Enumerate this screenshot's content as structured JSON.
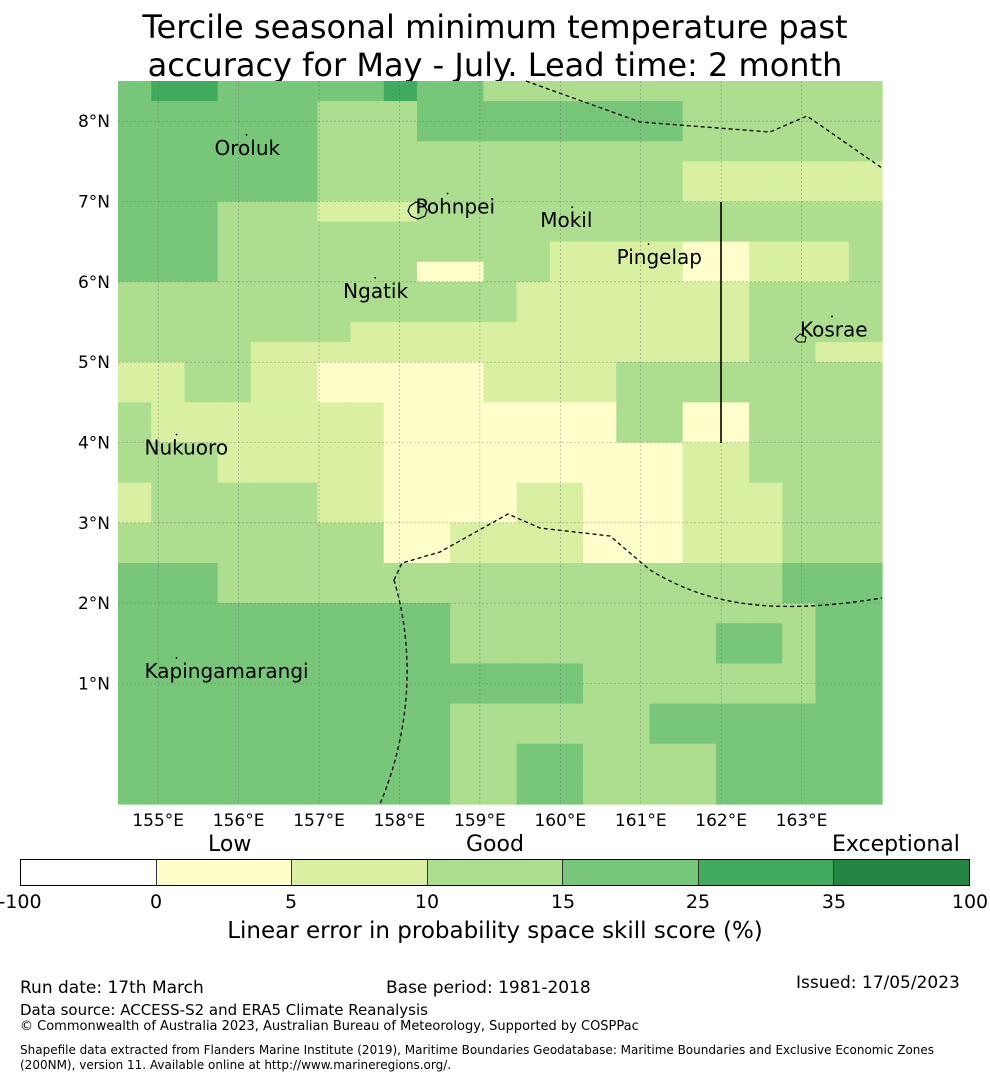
{
  "title": {
    "line1": "Tercile seasonal minimum temperature past",
    "line2": "accuracy for May - July. Lead time: 2 month"
  },
  "map": {
    "lon_range": [
      154.5,
      164.0
    ],
    "lat_range": [
      -0.5,
      8.5
    ],
    "lon_ticks": [
      {
        "value": 155,
        "label": "155°E"
      },
      {
        "value": 156,
        "label": "156°E"
      },
      {
        "value": 157,
        "label": "157°E"
      },
      {
        "value": 158,
        "label": "158°E"
      },
      {
        "value": 159,
        "label": "159°E"
      },
      {
        "value": 160,
        "label": "160°E"
      },
      {
        "value": 161,
        "label": "161°E"
      },
      {
        "value": 162,
        "label": "162°E"
      },
      {
        "value": 163,
        "label": "163°E"
      }
    ],
    "lat_ticks": [
      {
        "value": 1,
        "label": "1°N"
      },
      {
        "value": 2,
        "label": "2°N"
      },
      {
        "value": 3,
        "label": "3°N"
      },
      {
        "value": 4,
        "label": "4°N"
      },
      {
        "value": 5,
        "label": "5°N"
      },
      {
        "value": 6,
        "label": "6°N"
      },
      {
        "value": 7,
        "label": "7°N"
      },
      {
        "value": 8,
        "label": "8°N"
      }
    ],
    "grid_rows": [
      [
        4,
        5,
        5,
        4,
        4,
        4,
        4,
        4,
        5,
        4,
        4,
        3,
        3,
        3,
        3,
        3,
        3,
        3,
        3,
        3,
        3,
        3,
        3
      ],
      [
        4,
        4,
        4,
        4,
        4,
        4,
        3,
        3,
        3,
        4,
        4,
        4,
        4,
        4,
        4,
        4,
        4,
        3,
        3,
        3,
        3,
        3,
        3
      ],
      [
        4,
        4,
        4,
        4,
        4,
        4,
        3,
        3,
        3,
        4,
        4,
        4,
        4,
        4,
        4,
        4,
        4,
        3,
        3,
        3,
        3,
        3,
        3
      ],
      [
        4,
        4,
        4,
        4,
        4,
        4,
        3,
        3,
        3,
        3,
        3,
        3,
        3,
        3,
        3,
        3,
        3,
        3,
        3,
        3,
        3,
        3,
        3
      ],
      [
        4,
        4,
        4,
        4,
        4,
        4,
        3,
        3,
        3,
        3,
        3,
        3,
        3,
        3,
        3,
        3,
        3,
        2,
        2,
        2,
        2,
        2,
        2
      ],
      [
        4,
        4,
        4,
        4,
        4,
        4,
        3,
        3,
        3,
        3,
        3,
        3,
        3,
        3,
        3,
        3,
        3,
        2,
        2,
        2,
        2,
        2,
        2
      ],
      [
        4,
        4,
        4,
        3,
        3,
        3,
        2,
        2,
        2,
        3,
        3,
        3,
        3,
        3,
        3,
        3,
        3,
        3,
        3,
        3,
        3,
        3,
        3
      ],
      [
        4,
        4,
        4,
        3,
        3,
        3,
        3,
        3,
        3,
        3,
        3,
        3,
        3,
        3,
        3,
        3,
        3,
        3,
        3,
        3,
        3,
        3,
        3
      ],
      [
        4,
        4,
        4,
        3,
        3,
        3,
        3,
        3,
        3,
        3,
        3,
        3,
        3,
        2,
        2,
        2,
        2,
        1,
        1,
        2,
        2,
        2,
        3
      ],
      [
        4,
        4,
        4,
        3,
        3,
        3,
        3,
        3,
        3,
        1,
        1,
        3,
        3,
        2,
        2,
        2,
        2,
        1,
        1,
        2,
        2,
        2,
        3
      ],
      [
        3,
        3,
        3,
        3,
        3,
        3,
        3,
        3,
        3,
        3,
        3,
        3,
        2,
        2,
        2,
        2,
        2,
        2,
        2,
        3,
        3,
        3,
        3
      ],
      [
        3,
        3,
        3,
        3,
        3,
        3,
        3,
        3,
        3,
        3,
        3,
        3,
        2,
        2,
        2,
        2,
        2,
        2,
        2,
        3,
        3,
        3,
        3
      ],
      [
        3,
        3,
        3,
        3,
        3,
        3,
        3,
        2,
        2,
        2,
        2,
        2,
        2,
        2,
        2,
        2,
        2,
        2,
        2,
        3,
        3,
        3,
        3
      ],
      [
        3,
        3,
        3,
        3,
        2,
        2,
        2,
        2,
        2,
        2,
        2,
        2,
        2,
        2,
        2,
        2,
        2,
        2,
        2,
        3,
        3,
        2,
        2
      ],
      [
        2,
        2,
        3,
        3,
        2,
        2,
        1,
        1,
        1,
        1,
        1,
        2,
        2,
        2,
        2,
        3,
        3,
        3,
        3,
        3,
        3,
        3,
        3
      ],
      [
        2,
        2,
        3,
        3,
        2,
        2,
        1,
        1,
        1,
        1,
        1,
        2,
        2,
        2,
        2,
        3,
        3,
        3,
        3,
        3,
        3,
        3,
        3
      ],
      [
        3,
        2,
        2,
        2,
        2,
        2,
        2,
        2,
        1,
        1,
        1,
        1,
        1,
        1,
        1,
        3,
        3,
        1,
        1,
        3,
        3,
        3,
        3
      ],
      [
        3,
        2,
        2,
        2,
        2,
        2,
        2,
        2,
        1,
        1,
        1,
        1,
        1,
        1,
        1,
        3,
        3,
        1,
        1,
        3,
        3,
        3,
        3
      ],
      [
        3,
        3,
        3,
        2,
        2,
        2,
        2,
        2,
        1,
        1,
        1,
        1,
        1,
        1,
        1,
        1,
        1,
        2,
        2,
        3,
        3,
        3,
        3
      ],
      [
        3,
        3,
        3,
        2,
        2,
        2,
        2,
        2,
        1,
        1,
        1,
        1,
        1,
        1,
        1,
        1,
        1,
        2,
        2,
        3,
        3,
        3,
        3
      ],
      [
        2,
        3,
        3,
        3,
        3,
        3,
        2,
        2,
        1,
        1,
        1,
        1,
        2,
        2,
        1,
        1,
        1,
        2,
        2,
        2,
        3,
        3,
        3
      ],
      [
        2,
        3,
        3,
        3,
        3,
        3,
        2,
        2,
        1,
        1,
        1,
        1,
        2,
        2,
        1,
        1,
        1,
        2,
        2,
        2,
        3,
        3,
        3
      ],
      [
        3,
        3,
        3,
        3,
        3,
        3,
        3,
        3,
        1,
        1,
        2,
        2,
        2,
        2,
        1,
        1,
        1,
        2,
        2,
        2,
        3,
        3,
        3
      ],
      [
        3,
        3,
        3,
        3,
        3,
        3,
        3,
        3,
        1,
        1,
        2,
        2,
        2,
        2,
        1,
        1,
        1,
        2,
        2,
        2,
        3,
        3,
        3
      ],
      [
        4,
        4,
        4,
        3,
        3,
        3,
        3,
        3,
        3,
        3,
        3,
        3,
        3,
        3,
        3,
        3,
        3,
        3,
        3,
        3,
        4,
        4,
        4
      ],
      [
        4,
        4,
        4,
        3,
        3,
        3,
        3,
        3,
        3,
        3,
        3,
        3,
        3,
        3,
        3,
        3,
        3,
        3,
        3,
        3,
        4,
        4,
        4
      ],
      [
        4,
        4,
        4,
        4,
        4,
        4,
        4,
        4,
        4,
        4,
        3,
        3,
        3,
        3,
        3,
        3,
        3,
        3,
        3,
        3,
        3,
        4,
        4
      ],
      [
        4,
        4,
        4,
        4,
        4,
        4,
        4,
        4,
        4,
        4,
        3,
        3,
        3,
        3,
        3,
        3,
        3,
        3,
        4,
        4,
        3,
        4,
        4
      ],
      [
        4,
        4,
        4,
        4,
        4,
        4,
        4,
        4,
        4,
        4,
        3,
        3,
        3,
        3,
        3,
        3,
        3,
        3,
        4,
        4,
        3,
        4,
        4
      ],
      [
        4,
        4,
        4,
        4,
        4,
        4,
        4,
        4,
        4,
        4,
        4,
        4,
        4,
        4,
        3,
        3,
        3,
        3,
        3,
        3,
        3,
        4,
        4
      ],
      [
        4,
        4,
        4,
        4,
        4,
        4,
        4,
        4,
        4,
        4,
        4,
        4,
        4,
        4,
        3,
        3,
        3,
        3,
        3,
        3,
        3,
        4,
        4
      ],
      [
        4,
        4,
        4,
        4,
        4,
        4,
        4,
        4,
        4,
        4,
        3,
        3,
        3,
        3,
        3,
        3,
        4,
        4,
        4,
        4,
        4,
        4,
        4
      ],
      [
        4,
        4,
        4,
        4,
        4,
        4,
        4,
        4,
        4,
        4,
        3,
        3,
        3,
        3,
        3,
        3,
        4,
        4,
        4,
        4,
        4,
        4,
        4
      ],
      [
        4,
        4,
        4,
        4,
        4,
        4,
        4,
        4,
        4,
        4,
        3,
        3,
        4,
        4,
        3,
        3,
        3,
        3,
        4,
        4,
        4,
        4,
        4
      ],
      [
        4,
        4,
        4,
        4,
        4,
        4,
        4,
        4,
        4,
        4,
        3,
        3,
        4,
        4,
        3,
        3,
        3,
        3,
        4,
        4,
        4,
        4,
        4
      ],
      [
        4,
        4,
        4,
        4,
        4,
        4,
        4,
        4,
        4,
        4,
        3,
        3,
        4,
        4,
        3,
        3,
        3,
        3,
        4,
        4,
        4,
        4,
        4
      ]
    ],
    "category_colors": [
      "#ffffff",
      "#ffffcc",
      "#d9f0a3",
      "#addd8e",
      "#78c679",
      "#41ab5d",
      "#238443"
    ],
    "places": [
      {
        "name": "Oroluk",
        "lon": 155.7,
        "lat": 7.58
      },
      {
        "name": "Pohnpei",
        "lon": 158.2,
        "lat": 6.85
      },
      {
        "name": "Mokil",
        "lon": 159.75,
        "lat": 6.68
      },
      {
        "name": "Pingelap",
        "lon": 160.7,
        "lat": 6.22
      },
      {
        "name": "Ngatik",
        "lon": 157.3,
        "lat": 5.8
      },
      {
        "name": "Kosrae",
        "lon": 162.98,
        "lat": 5.32
      },
      {
        "name": "Nukuoro",
        "lon": 154.83,
        "lat": 3.85
      },
      {
        "name": "Kapingamarangi",
        "lon": 154.83,
        "lat": 1.07
      }
    ]
  },
  "colorbar": {
    "categories": [
      "Low",
      "Good",
      "Exceptional"
    ],
    "ticks": [
      "-100",
      "0",
      "5",
      "10",
      "15",
      "25",
      "35",
      "100"
    ],
    "colors": [
      "#ffffff",
      "#ffffcc",
      "#d9f0a3",
      "#addd8e",
      "#78c679",
      "#41ab5d",
      "#238443"
    ],
    "label": "Linear error in probability space skill score (%)"
  },
  "footer": {
    "run_date": "Run date: 17th March",
    "base_period": "Base period: 1981-2018",
    "issued": "Issued: 17/05/2023",
    "data_source": "Data source: ACCESS-S2 and ERA5 Climate Reanalysis",
    "copyright": "© Commonwealth of Australia 2023, Australian Bureau of Meteorology, Supported by COSPPac",
    "shapefile_line1": "Shapefile data extracted from Flanders Marine Institute (2019), Maritime Boundaries Geodatabase: Maritime Boundaries and Exclusive Economic Zones",
    "shapefile_line2": "(200NM), version 11. Available online at http://www.marineregions.org/."
  }
}
